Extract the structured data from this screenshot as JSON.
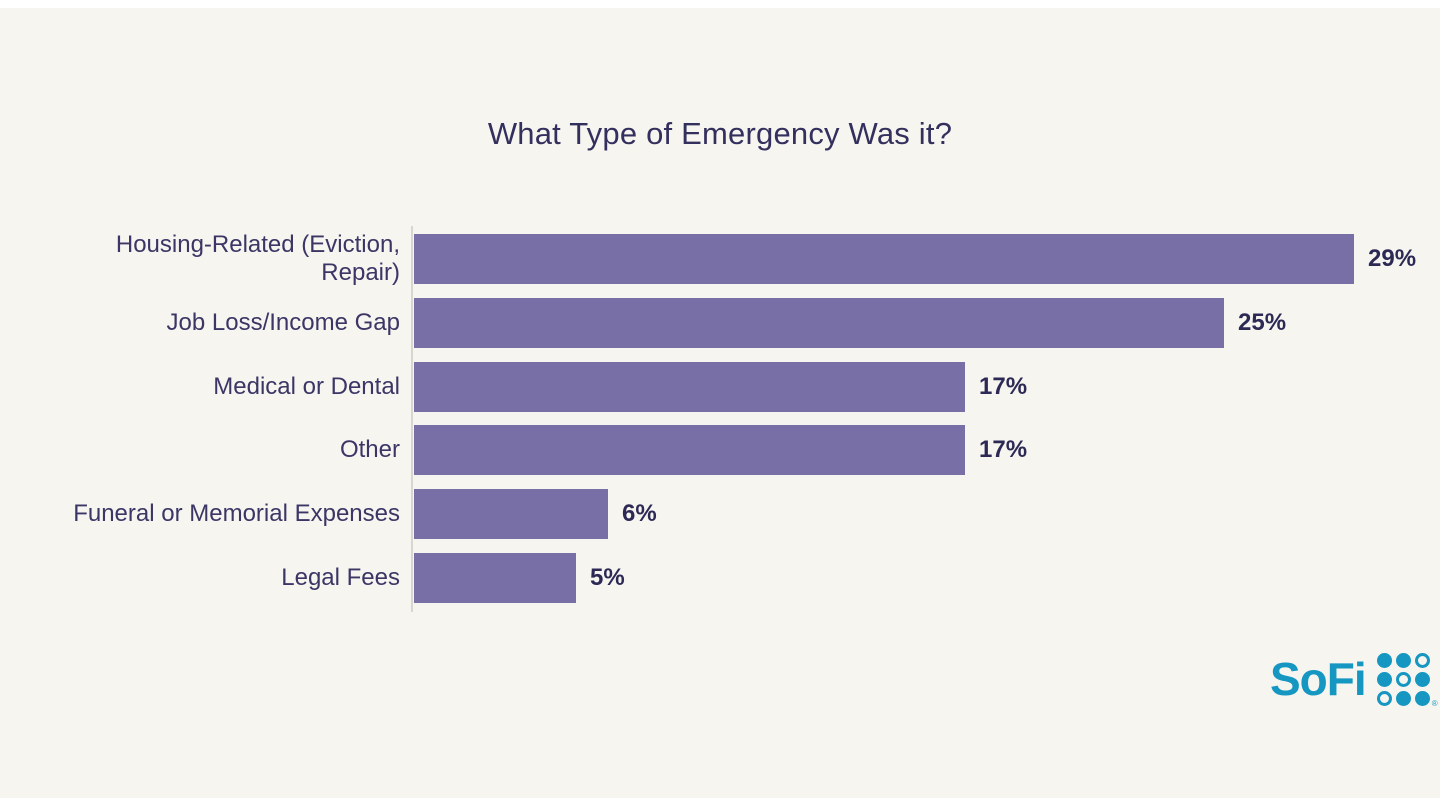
{
  "page": {
    "background_color": "#f7f5f0",
    "edge_strip_color": "#ffffff"
  },
  "chart_data": {
    "type": "bar",
    "orientation": "horizontal",
    "title": "What Type of Emergency Was it?",
    "categories": [
      "Housing-Related (Eviction,\nRepair)",
      "Job Loss/Income Gap",
      "Medical or Dental",
      "Other",
      "Funeral or Memorial Expenses",
      "Legal Fees"
    ],
    "values": [
      29,
      25,
      17,
      17,
      6,
      5
    ],
    "value_labels": [
      "29%",
      "25%",
      "17%",
      "17%",
      "6%",
      "5%"
    ],
    "xlabel": "",
    "ylabel": "",
    "xlim": [
      0,
      29
    ],
    "grid": false,
    "legend": false,
    "bar_color": "#786fa7",
    "title_color": "#34305e",
    "category_label_color": "#3b3665",
    "value_label_color": "#2c2a54",
    "axis_line_color": "#d9d6d0"
  },
  "branding": {
    "logo_text": "SoFi",
    "logo_color": "#1697c2",
    "logo_icon": "sofi-dot-grid-icon",
    "logo_dot_pattern": [
      [
        1,
        1,
        0
      ],
      [
        1,
        0,
        1
      ],
      [
        0,
        1,
        1
      ]
    ],
    "registered_mark": "®"
  }
}
